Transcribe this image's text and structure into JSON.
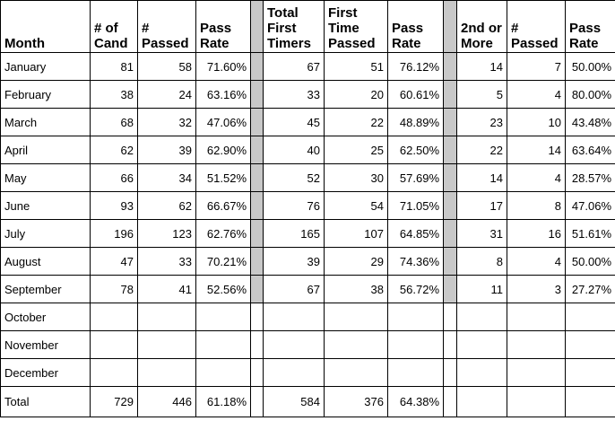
{
  "table": {
    "header": [
      "Month",
      "# of Cand",
      "# Passed",
      "Pass Rate",
      "Total First Timers",
      "First Time Passed",
      "Pass Rate",
      "2nd or More",
      "# Passed",
      "Pass Rate"
    ],
    "rows": [
      [
        "January",
        "81",
        "58",
        "71.60%",
        "67",
        "51",
        "76.12%",
        "14",
        "7",
        "50.00%"
      ],
      [
        "February",
        "38",
        "24",
        "63.16%",
        "33",
        "20",
        "60.61%",
        "5",
        "4",
        "80.00%"
      ],
      [
        "March",
        "68",
        "32",
        "47.06%",
        "45",
        "22",
        "48.89%",
        "23",
        "10",
        "43.48%"
      ],
      [
        "April",
        "62",
        "39",
        "62.90%",
        "40",
        "25",
        "62.50%",
        "22",
        "14",
        "63.64%"
      ],
      [
        "May",
        "66",
        "34",
        "51.52%",
        "52",
        "30",
        "57.69%",
        "14",
        "4",
        "28.57%"
      ],
      [
        "June",
        "93",
        "62",
        "66.67%",
        "76",
        "54",
        "71.05%",
        "17",
        "8",
        "47.06%"
      ],
      [
        "July",
        "196",
        "123",
        "62.76%",
        "165",
        "107",
        "64.85%",
        "31",
        "16",
        "51.61%"
      ],
      [
        "August",
        "47",
        "33",
        "70.21%",
        "39",
        "29",
        "74.36%",
        "8",
        "4",
        "50.00%"
      ],
      [
        "September",
        "78",
        "41",
        "52.56%",
        "67",
        "38",
        "56.72%",
        "11",
        "3",
        "27.27%"
      ],
      [
        "October"
      ],
      [
        "November"
      ],
      [
        "December"
      ],
      [
        "Total",
        "729",
        "446",
        "61.18%",
        "584",
        "376",
        "64.38%"
      ]
    ]
  }
}
